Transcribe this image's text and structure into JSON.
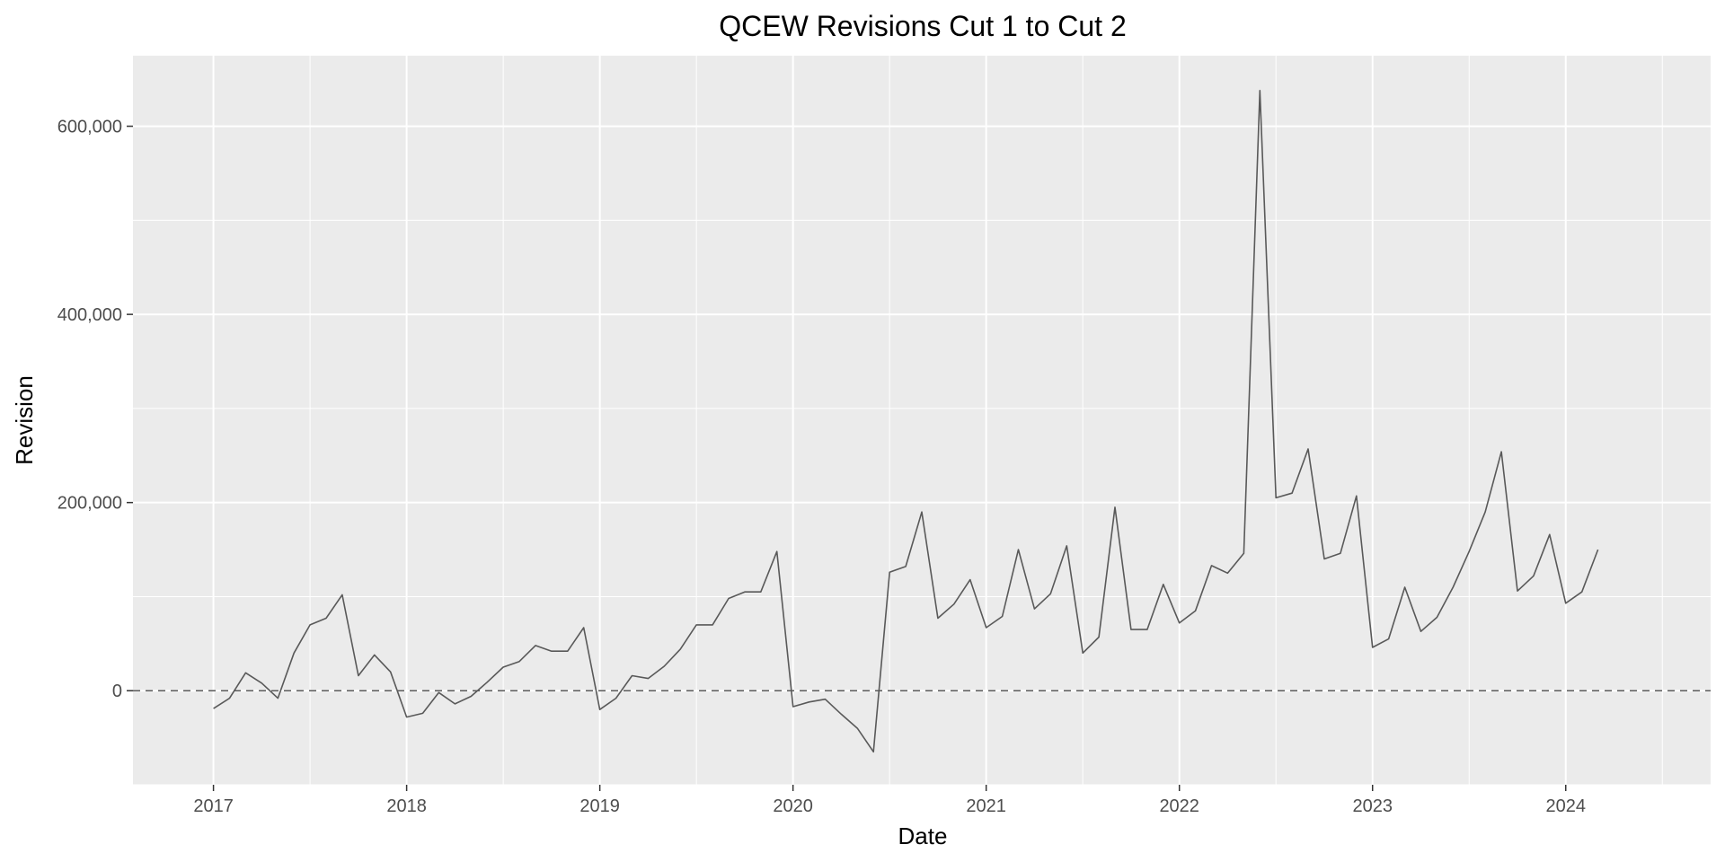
{
  "chart_data": {
    "type": "line",
    "title": "QCEW Revisions Cut 1 to Cut 2",
    "xlabel": "Date",
    "ylabel": "Revision",
    "x_ticks": [
      "2017",
      "2018",
      "2019",
      "2020",
      "2021",
      "2022",
      "2023",
      "2024"
    ],
    "y_ticks": [
      {
        "value": 0,
        "label": "0"
      },
      {
        "value": 200000,
        "label": "200,000"
      },
      {
        "value": 400000,
        "label": "400,000"
      },
      {
        "value": 600000,
        "label": "600,000"
      }
    ],
    "xlim": [
      "2016-08",
      "2024-10"
    ],
    "ylim": [
      -100000,
      675000
    ],
    "reference_line": {
      "y": 0,
      "style": "dashed"
    },
    "grid": true,
    "colors": {
      "panel": "#ebebeb",
      "grid": "#ffffff",
      "line": "#595959",
      "reference": "#595959"
    },
    "x": [
      "2017-01",
      "2017-02",
      "2017-03",
      "2017-04",
      "2017-05",
      "2017-06",
      "2017-07",
      "2017-08",
      "2017-09",
      "2017-10",
      "2017-11",
      "2017-12",
      "2018-01",
      "2018-02",
      "2018-03",
      "2018-04",
      "2018-05",
      "2018-06",
      "2018-07",
      "2018-08",
      "2018-09",
      "2018-10",
      "2018-11",
      "2018-12",
      "2019-01",
      "2019-02",
      "2019-03",
      "2019-04",
      "2019-05",
      "2019-06",
      "2019-07",
      "2019-08",
      "2019-09",
      "2019-10",
      "2019-11",
      "2019-12",
      "2020-01",
      "2020-02",
      "2020-03",
      "2020-04",
      "2020-05",
      "2020-06",
      "2020-07",
      "2020-08",
      "2020-09",
      "2020-10",
      "2020-11",
      "2020-12",
      "2021-01",
      "2021-02",
      "2021-03",
      "2021-04",
      "2021-05",
      "2021-06",
      "2021-07",
      "2021-08",
      "2021-09",
      "2021-10",
      "2021-11",
      "2021-12",
      "2022-01",
      "2022-02",
      "2022-03",
      "2022-04",
      "2022-05",
      "2022-06",
      "2022-07",
      "2022-08",
      "2022-09",
      "2022-10",
      "2022-11",
      "2022-12",
      "2023-01",
      "2023-02",
      "2023-03",
      "2023-04",
      "2023-05",
      "2023-06",
      "2023-07",
      "2023-08",
      "2023-09",
      "2023-10",
      "2023-11",
      "2023-12",
      "2024-01",
      "2024-02",
      "2024-03"
    ],
    "y": [
      -19000,
      -8000,
      19000,
      8000,
      -8000,
      40000,
      70000,
      77000,
      102000,
      16000,
      38000,
      20000,
      -28000,
      -24000,
      -2000,
      -14000,
      -6000,
      9000,
      25000,
      31000,
      48000,
      42000,
      42000,
      67000,
      -20000,
      -8000,
      16000,
      13000,
      26000,
      44000,
      70000,
      70000,
      98000,
      105000,
      105000,
      148000,
      -17000,
      -12000,
      -9000,
      -25000,
      -40000,
      -65000,
      126000,
      132000,
      190000,
      77000,
      92000,
      118000,
      67000,
      79000,
      150000,
      87000,
      103000,
      154000,
      40000,
      57000,
      195000,
      65000,
      65000,
      113000,
      72000,
      85000,
      133000,
      125000,
      146000,
      638000,
      205000,
      210000,
      257000,
      140000,
      146000,
      207000,
      46000,
      55000,
      110000,
      63000,
      78000,
      110000,
      148000,
      190000,
      254000,
      106000,
      122000,
      166000,
      93000,
      105000,
      150000
    ]
  }
}
